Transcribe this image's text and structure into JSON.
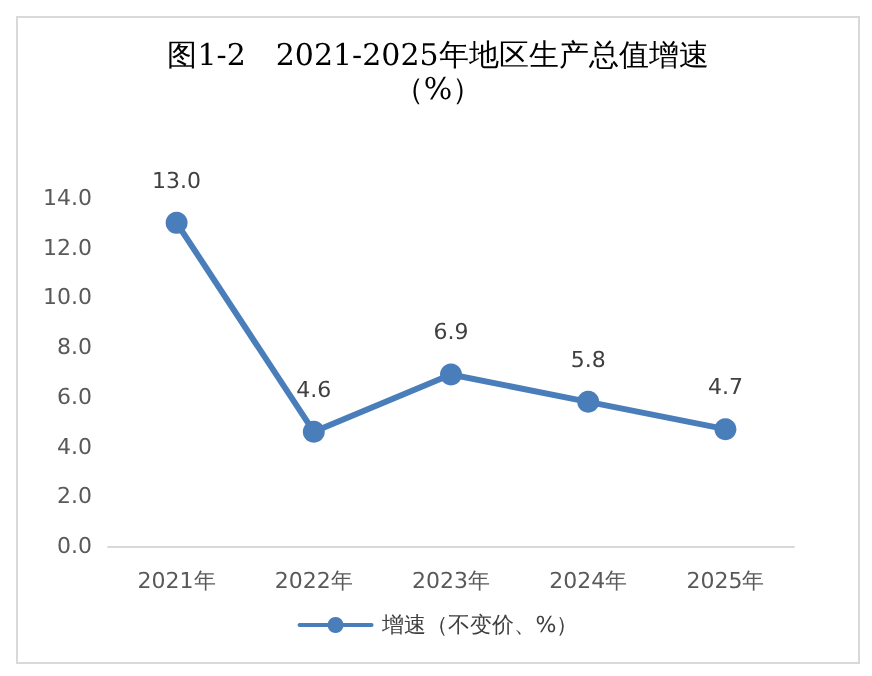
{
  "chart_data": {
    "type": "line",
    "title": "图1-2　2021-2025年地区生产总值增速",
    "subtitle": "（%）",
    "categories": [
      "2021年",
      "2022年",
      "2023年",
      "2024年",
      "2025年"
    ],
    "series": [
      {
        "name": "增速（不变价、%）",
        "color": "#4a7ebb",
        "values": [
          13.0,
          4.6,
          6.9,
          5.8,
          4.7
        ],
        "value_labels": [
          "13.0",
          "4.6",
          "6.9",
          "5.8",
          "4.7"
        ]
      }
    ],
    "ylim": [
      0,
      14
    ],
    "yticks": [
      {
        "value": 0,
        "label": "0.0"
      },
      {
        "value": 2,
        "label": "2.0"
      },
      {
        "value": 4,
        "label": "4.0"
      },
      {
        "value": 6,
        "label": "6.0"
      },
      {
        "value": 8,
        "label": "8.0"
      },
      {
        "value": 10,
        "label": "10.0"
      },
      {
        "value": 12,
        "label": "12.0"
      },
      {
        "value": 14,
        "label": "14.0"
      }
    ],
    "grid": false,
    "legend": "bottom",
    "marker": "circle",
    "line_style": "solid"
  }
}
